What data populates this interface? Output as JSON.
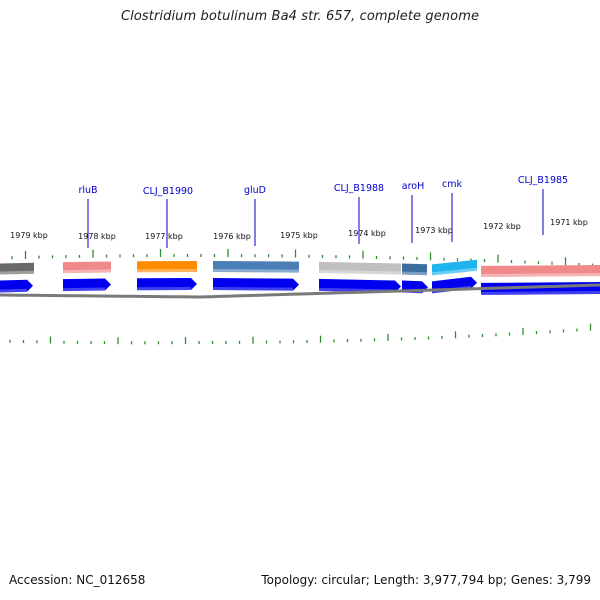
{
  "title": "Clostridium botulinum Ba4 str. 657, complete genome",
  "footer": {
    "accession": "Accession: NC_012658",
    "summary": "Topology: circular; Length: 3,977,794 bp; Genes: 3,799"
  },
  "kbp_ticks": [
    "1979 kbp",
    "1978 kbp",
    "1977 kbp",
    "1976 kbp",
    "1975 kbp",
    "1974 kbp",
    "1973 kbp",
    "1972 kbp",
    "1971 kbp"
  ],
  "gene_labels": [
    "rluB",
    "CLJ_B1990",
    "gluD",
    "CLJ_B1988",
    "aroH",
    "cmk",
    "CLJ_B1985"
  ],
  "colors": {
    "gene_arrow": "#0000ee",
    "tick": "#2e8b2e",
    "backbone": "#7a7a7a",
    "label_line": "#0000cc"
  },
  "feature_blocks": [
    {
      "name": "dark-gray-block",
      "color": "#6a6a6a"
    },
    {
      "name": "rluB-block",
      "color": "#f08a8a"
    },
    {
      "name": "orange-block",
      "color": "#ff8c00"
    },
    {
      "name": "gluD-block",
      "color": "#4a7eb5"
    },
    {
      "name": "light-gray-block",
      "color": "#c0c0c0"
    },
    {
      "name": "aroH-block",
      "color": "#3a6e9e"
    },
    {
      "name": "cmk-block",
      "color": "#1fb4ef"
    },
    {
      "name": "CLJ_B1985-block",
      "color": "#f08a8a"
    }
  ]
}
